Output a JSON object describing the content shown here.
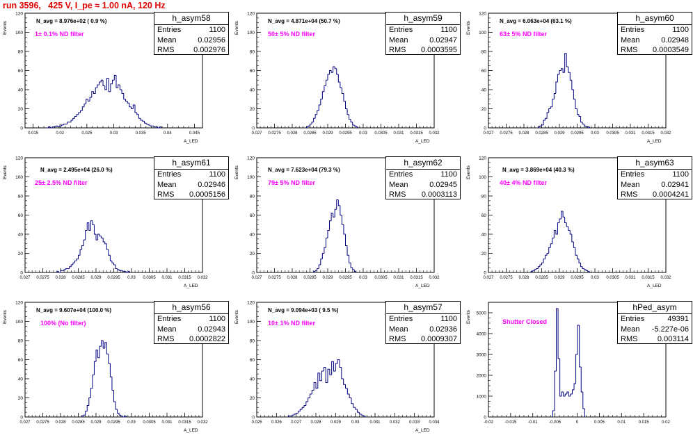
{
  "run_title": "run 3596,   425 V, I_pe ≈ 1.00 nA, 120 Hz",
  "stat_labels": {
    "entries": "Entries",
    "mean": "Mean",
    "rms": "RMS"
  },
  "chart_data": [
    {
      "type": "bar",
      "name": "h_asym58",
      "navg": "N_avg = 8.976e+02 ( 0.9 %)",
      "filter": "1± 0.1% ND filter",
      "entries": "1100",
      "mean": "0.02956",
      "rms": "0.002976",
      "ylabel": "Events",
      "xlabel": "A_LED",
      "xlim": [
        0.0135,
        0.0465
      ],
      "ylim": [
        0,
        120
      ],
      "xticks": [
        0.015,
        0.02,
        0.025,
        0.03,
        0.035,
        0.04,
        0.045
      ],
      "xtick_labels": [
        "0.015",
        "0.02",
        "0.025",
        "0.03",
        "0.035",
        "0.04",
        "0.045"
      ],
      "yticks": [
        0,
        20,
        40,
        60,
        80,
        100,
        120
      ],
      "ytick_labels": [
        "0",
        "20",
        "40",
        "60",
        "80",
        "100",
        "120"
      ],
      "hist": {
        "start": 0.0175,
        "step": 0.00035,
        "values": [
          0,
          1,
          0,
          1,
          1,
          2,
          1,
          2,
          3,
          4,
          4,
          6,
          6,
          8,
          10,
          12,
          14,
          16,
          18,
          22,
          25,
          30,
          28,
          32,
          38,
          36,
          42,
          45,
          48,
          50,
          44,
          40,
          52,
          38,
          46,
          50,
          55,
          42,
          45,
          40,
          36,
          30,
          28,
          26,
          22,
          20,
          24,
          16,
          14,
          10,
          8,
          7,
          5,
          4,
          3,
          2,
          2,
          1,
          1,
          0,
          1
        ]
      }
    },
    {
      "type": "bar",
      "name": "h_asym59",
      "navg": "N_avg = 4.871e+04 (50.7 %)",
      "filter": "50± 5% ND filter",
      "entries": "1100",
      "mean": "0.02947",
      "rms": "0.0003595",
      "ylabel": "Events",
      "xlabel": "A_LED",
      "xlim": [
        0.027,
        0.032
      ],
      "ylim": [
        0,
        120
      ],
      "xticks": [
        0.027,
        0.0275,
        0.028,
        0.0285,
        0.029,
        0.0295,
        0.03,
        0.0305,
        0.031,
        0.0315,
        0.032
      ],
      "xtick_labels": [
        "0.027",
        "0.0275",
        "0.028",
        "0.0285",
        "0.029",
        "0.0295",
        "0.03",
        "0.0305",
        "0.031",
        "0.0315",
        "0.032"
      ],
      "yticks": [
        0,
        20,
        40,
        60,
        80,
        100,
        120
      ],
      "ytick_labels": [
        "0",
        "20",
        "40",
        "60",
        "80",
        "100",
        "120"
      ],
      "hist": {
        "start": 0.0284,
        "step": 5e-05,
        "values": [
          1,
          2,
          4,
          6,
          10,
          14,
          18,
          24,
          30,
          38,
          44,
          50,
          56,
          60,
          58,
          64,
          62,
          56,
          48,
          42,
          36,
          28,
          20,
          14,
          9,
          6,
          3,
          2,
          1
        ]
      }
    },
    {
      "type": "bar",
      "name": "h_asym60",
      "navg": "N_avg = 6.063e+04 (63.1 %)",
      "filter": "63± 5% ND filter",
      "entries": "1100",
      "mean": "0.02948",
      "rms": "0.0003549",
      "ylabel": "Events",
      "xlabel": "A_LED",
      "xlim": [
        0.027,
        0.032
      ],
      "ylim": [
        0,
        120
      ],
      "xticks": [
        0.027,
        0.0275,
        0.028,
        0.0285,
        0.029,
        0.0295,
        0.03,
        0.0305,
        0.031,
        0.0315,
        0.032
      ],
      "xtick_labels": [
        "0.027",
        "0.0275",
        "0.028",
        "0.0285",
        "0.029",
        "0.0295",
        "0.03",
        "0.0305",
        "0.031",
        "0.0315",
        "0.032"
      ],
      "yticks": [
        0,
        20,
        40,
        60,
        80,
        100,
        120
      ],
      "ytick_labels": [
        "0",
        "20",
        "40",
        "60",
        "80",
        "100",
        "120"
      ],
      "hist": {
        "start": 0.0284,
        "step": 5e-05,
        "values": [
          1,
          2,
          3,
          8,
          10,
          16,
          20,
          22,
          30,
          36,
          48,
          56,
          60,
          62,
          58,
          78,
          64,
          58,
          50,
          40,
          30,
          20,
          14,
          12,
          6,
          4,
          2,
          1,
          1
        ]
      }
    },
    {
      "type": "bar",
      "name": "h_asym61",
      "navg": "N_avg = 2.495e+04 (26.0 %)",
      "filter": "25± 2.5% ND filter",
      "entries": "1100",
      "mean": "0.02946",
      "rms": "0.0005156",
      "ylabel": "Events",
      "xlabel": "A_LED",
      "xlim": [
        0.027,
        0.032
      ],
      "ylim": [
        0,
        120
      ],
      "xticks": [
        0.027,
        0.0275,
        0.028,
        0.0285,
        0.029,
        0.0295,
        0.03,
        0.0305,
        0.031,
        0.0315,
        0.032
      ],
      "xtick_labels": [
        "0.027",
        "0.0275",
        "0.028",
        "0.0285",
        "0.029",
        "0.0295",
        "0.03",
        "0.0305",
        "0.031",
        "0.0315",
        "0.032"
      ],
      "yticks": [
        0,
        20,
        40,
        60,
        80,
        100,
        120
      ],
      "ytick_labels": [
        "0",
        "20",
        "40",
        "60",
        "80",
        "100",
        "120"
      ],
      "hist": {
        "start": 0.0279,
        "step": 5e-05,
        "values": [
          1,
          0,
          2,
          2,
          3,
          4,
          4,
          6,
          8,
          10,
          12,
          14,
          18,
          24,
          28,
          34,
          44,
          52,
          44,
          54,
          50,
          40,
          34,
          40,
          38,
          36,
          32,
          30,
          24,
          18,
          12,
          10,
          8,
          4,
          3,
          2,
          2,
          1,
          1,
          0,
          1
        ]
      }
    },
    {
      "type": "bar",
      "name": "h_asym62",
      "navg": "N_avg = 7.623e+04 (79.3 %)",
      "filter": "79± 5% ND filter",
      "entries": "1100",
      "mean": "0.02945",
      "rms": "0.0003113",
      "ylabel": "Events",
      "xlabel": "A_LED",
      "xlim": [
        0.027,
        0.032
      ],
      "ylim": [
        0,
        120
      ],
      "xticks": [
        0.027,
        0.0275,
        0.028,
        0.0285,
        0.029,
        0.0295,
        0.03,
        0.0305,
        0.031,
        0.0315,
        0.032
      ],
      "xtick_labels": [
        "0.027",
        "0.0275",
        "0.028",
        "0.0285",
        "0.029",
        "0.0295",
        "0.03",
        "0.0305",
        "0.031",
        "0.0315",
        "0.032"
      ],
      "yticks": [
        0,
        20,
        40,
        60,
        80,
        100,
        120
      ],
      "ytick_labels": [
        "0",
        "20",
        "40",
        "60",
        "80",
        "100",
        "120"
      ],
      "hist": {
        "start": 0.0286,
        "step": 5e-05,
        "values": [
          1,
          2,
          4,
          8,
          14,
          20,
          26,
          36,
          44,
          54,
          62,
          58,
          66,
          76,
          70,
          60,
          50,
          40,
          28,
          18,
          10,
          5,
          3,
          1
        ]
      }
    },
    {
      "type": "bar",
      "name": "h_asym63",
      "navg": "N_avg = 3.869e+04 (40.3 %)",
      "filter": "40± 4% ND filter",
      "entries": "1100",
      "mean": "0.02941",
      "rms": "0.0004241",
      "ylabel": "Events",
      "xlabel": "A_LED",
      "xlim": [
        0.027,
        0.032
      ],
      "ylim": [
        0,
        120
      ],
      "xticks": [
        0.027,
        0.0275,
        0.028,
        0.0285,
        0.029,
        0.0295,
        0.03,
        0.0305,
        0.031,
        0.0315,
        0.032
      ],
      "xtick_labels": [
        "0.027",
        "0.0275",
        "0.028",
        "0.0285",
        "0.029",
        "0.0295",
        "0.03",
        "0.0305",
        "0.031",
        "0.0315",
        "0.032"
      ],
      "yticks": [
        0,
        20,
        40,
        60,
        80,
        100,
        120
      ],
      "ytick_labels": [
        "0",
        "20",
        "40",
        "60",
        "80",
        "100",
        "120"
      ],
      "hist": {
        "start": 0.0282,
        "step": 5e-05,
        "values": [
          1,
          2,
          3,
          4,
          6,
          8,
          10,
          14,
          18,
          20,
          26,
          30,
          36,
          44,
          40,
          52,
          56,
          64,
          58,
          52,
          48,
          44,
          40,
          32,
          26,
          18,
          14,
          10,
          6,
          4,
          3,
          2,
          1
        ]
      }
    },
    {
      "type": "bar",
      "name": "h_asym56",
      "navg": "N_avg = 9.607e+04 (100.0 %)",
      "filter": "100% (No filter)",
      "entries": "1100",
      "mean": "0.02943",
      "rms": "0.0002822",
      "ylabel": "Events",
      "xlabel": "A_LED",
      "xlim": [
        0.027,
        0.032
      ],
      "ylim": [
        0,
        120
      ],
      "xticks": [
        0.027,
        0.0275,
        0.028,
        0.0285,
        0.029,
        0.0295,
        0.03,
        0.0305,
        0.031,
        0.0315,
        0.032
      ],
      "xtick_labels": [
        "0.027",
        "0.0275",
        "0.028",
        "0.0285",
        "0.029",
        "0.0295",
        "0.03",
        "0.0305",
        "0.031",
        "0.0315",
        "0.032"
      ],
      "yticks": [
        0,
        20,
        40,
        60,
        80,
        100,
        120
      ],
      "ytick_labels": [
        "0",
        "20",
        "40",
        "60",
        "80",
        "100",
        "120"
      ],
      "hist": {
        "start": 0.0286,
        "step": 5e-05,
        "values": [
          1,
          2,
          6,
          12,
          20,
          30,
          44,
          58,
          70,
          62,
          74,
          80,
          72,
          78,
          66,
          56,
          42,
          28,
          16,
          8,
          4,
          2,
          1,
          0,
          1
        ]
      }
    },
    {
      "type": "bar",
      "name": "h_asym57",
      "navg": "N_avg = 9.094e+03 ( 9.5 %)",
      "filter": "10± 1% ND filter",
      "entries": "1100",
      "mean": "0.02936",
      "rms": "0.0009307",
      "ylabel": "Events",
      "xlabel": "A_LED",
      "xlim": [
        0.025,
        0.034
      ],
      "ylim": [
        0,
        120
      ],
      "xticks": [
        0.025,
        0.026,
        0.027,
        0.028,
        0.029,
        0.03,
        0.031,
        0.032,
        0.033,
        0.034
      ],
      "xtick_labels": [
        "0.025",
        "0.026",
        "0.027",
        "0.028",
        "0.029",
        "0.03",
        "0.031",
        "0.032",
        "0.033",
        "0.034"
      ],
      "yticks": [
        0,
        20,
        40,
        60,
        80,
        100,
        120
      ],
      "ytick_labels": [
        "0",
        "20",
        "40",
        "60",
        "80",
        "100",
        "120"
      ],
      "hist": {
        "start": 0.0266,
        "step": 0.0001,
        "values": [
          1,
          1,
          2,
          3,
          4,
          6,
          8,
          10,
          12,
          16,
          20,
          24,
          28,
          36,
          30,
          46,
          38,
          48,
          52,
          36,
          50,
          44,
          58,
          48,
          56,
          60,
          52,
          40,
          34,
          30,
          24,
          20,
          14,
          10,
          8,
          5,
          3,
          2,
          1
        ]
      }
    },
    {
      "type": "bar",
      "name": "hPed_asym",
      "navg": "",
      "filter": "Shutter Closed",
      "entries": "49391",
      "mean": "-5.227e-06",
      "rms": "0.003114",
      "ylabel": "Events",
      "xlabel": "",
      "xlim": [
        -0.02,
        0.02
      ],
      "ylim": [
        0,
        5500
      ],
      "xticks": [
        -0.02,
        -0.015,
        -0.01,
        -0.005,
        0,
        0.005,
        0.01,
        0.015,
        0.02
      ],
      "xtick_labels": [
        "-0.02",
        "-0.015",
        "-0.01",
        "-0.005",
        "0",
        "0.005",
        "0.01",
        "0.015",
        "0.02"
      ],
      "yticks": [
        0,
        1000,
        2000,
        3000,
        4000,
        5000
      ],
      "ytick_labels": [
        "0",
        "1000",
        "2000",
        "3000",
        "4000",
        "5000"
      ],
      "hist": {
        "start": -0.0055,
        "step": 0.0004,
        "values": [
          300,
          2200,
          5200,
          2800,
          1000,
          1200,
          1000,
          1100,
          1200,
          1000,
          1100,
          1300,
          1600,
          3000,
          4400,
          2400,
          1200,
          400
        ]
      }
    }
  ]
}
